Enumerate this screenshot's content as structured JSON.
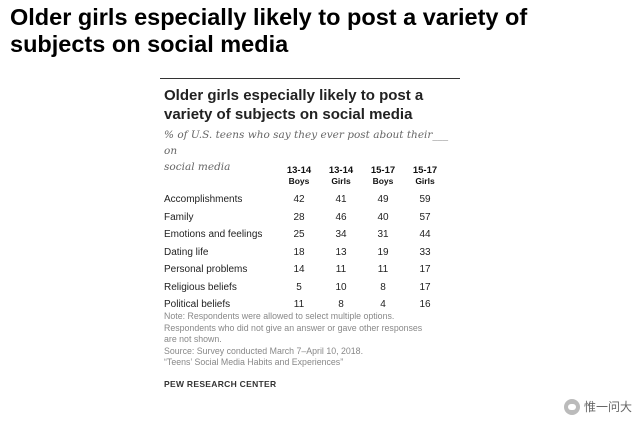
{
  "headline": {
    "line1": "Older girls especially likely to post a variety of",
    "line2": "subjects on social media"
  },
  "card": {
    "title_line1": "Older girls especially likely to post a",
    "title_line2": "variety of subjects on social media",
    "subtitle_line1": "% of U.S. teens who say they ever post about their___ on",
    "subtitle_line2": "social media"
  },
  "chart_data": {
    "type": "table",
    "title": "Older girls especially likely to post a variety of subjects on social media",
    "subtitle": "% of U.S. teens who say they ever post about their___ on social media",
    "columns": [
      {
        "line1": "13-14",
        "line2": "Boys"
      },
      {
        "line1": "13-14",
        "line2": "Girls"
      },
      {
        "line1": "15-17",
        "line2": "Boys"
      },
      {
        "line1": "15-17",
        "line2": "Girls"
      }
    ],
    "rows": [
      {
        "label": "Accomplishments",
        "values": [
          "42",
          "41",
          "49",
          "59"
        ]
      },
      {
        "label": "Family",
        "values": [
          "28",
          "46",
          "40",
          "57"
        ]
      },
      {
        "label": "Emotions and feelings",
        "values": [
          "25",
          "34",
          "31",
          "44"
        ]
      },
      {
        "label": "Dating life",
        "values": [
          "18",
          "13",
          "19",
          "33"
        ]
      },
      {
        "label": "Personal problems",
        "values": [
          "14",
          "11",
          "11",
          "17"
        ]
      },
      {
        "label": "Religious beliefs",
        "values": [
          "5",
          "10",
          "8",
          "17"
        ]
      },
      {
        "label": "Political beliefs",
        "values": [
          "11",
          "8",
          "4",
          "16"
        ]
      }
    ]
  },
  "notes": {
    "line1": "Note: Respondents were allowed to select multiple options.",
    "line2": "Respondents who did not give an answer or gave other responses",
    "line3": "are not shown.",
    "line4": "Source: Survey conducted March 7–April 10, 2018.",
    "line5": "“Teens’ Social Media Habits and Experiences”"
  },
  "brand": "PEW RESEARCH CENTER",
  "watermark": {
    "icon": "chat-bubble-icon",
    "text": "惟一问大"
  }
}
